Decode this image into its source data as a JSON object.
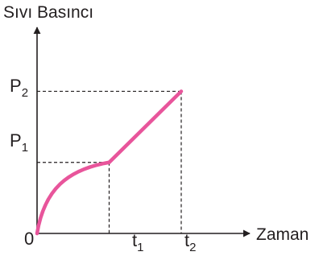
{
  "chart_data": {
    "type": "line",
    "title": "",
    "ylabel": "Sıvı Basıncı",
    "xlabel": "Zaman",
    "origin_label": "0",
    "x_ticks": [
      {
        "base": "t",
        "sub": "1",
        "value": 1
      },
      {
        "base": "t",
        "sub": "2",
        "value": 2
      }
    ],
    "y_ticks": [
      {
        "base": "P",
        "sub": "1",
        "value": 1
      },
      {
        "base": "P",
        "sub": "2",
        "value": 2
      }
    ],
    "xlim": [
      0,
      2.95
    ],
    "ylim": [
      0,
      2.9
    ],
    "grid": false,
    "guide_lines": "dashed",
    "series": [
      {
        "color": "#e8559b",
        "segments": [
          {
            "shape": "concave-rising",
            "from": [
              0,
              0
            ],
            "to": [
              1,
              1
            ]
          },
          {
            "shape": "straight",
            "from": [
              1,
              1
            ],
            "to": [
              2,
              2
            ]
          }
        ]
      }
    ],
    "colors": {
      "axis": "#231f20",
      "curve": "#e8559b"
    }
  }
}
